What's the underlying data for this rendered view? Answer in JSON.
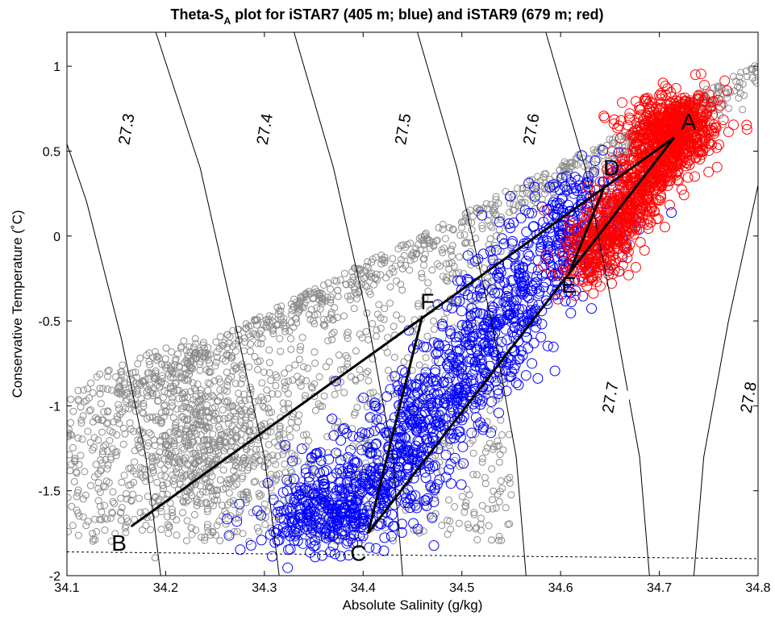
{
  "chart_data": {
    "type": "scatter",
    "title_main": "Theta-S",
    "title_sub": "A",
    "title_rest": " plot for iSTAR7 (405 m; blue) and iSTAR9 (679 m; red)",
    "xlabel": "Absolute Salinity (g/kg)",
    "ylabel": "Conservative Temperature (˚C)",
    "xlim": [
      34.1,
      34.8
    ],
    "ylim": [
      -2.0,
      1.2
    ],
    "xticks": [
      "34.1",
      "34.2",
      "34.3",
      "34.4",
      "34.5",
      "34.6",
      "34.7",
      "34.8"
    ],
    "yticks": [
      "-2",
      "-1.5",
      "-1",
      "-0.5",
      "0",
      "0.5",
      "1"
    ],
    "grid": false,
    "colors": {
      "background_cast": "#808080",
      "istar7": "#0000ff",
      "istar9": "#ff0000",
      "lines": "#000000"
    },
    "density_contours": [
      {
        "label": "27.3",
        "points": [
          [
            34.085,
            0.8
          ],
          [
            34.12,
            0.2
          ],
          [
            34.155,
            -0.6
          ],
          [
            34.18,
            -1.3
          ],
          [
            34.195,
            -2.0
          ]
        ]
      },
      {
        "label": "27.4",
        "points": [
          [
            34.19,
            1.2
          ],
          [
            34.235,
            0.4
          ],
          [
            34.27,
            -0.5
          ],
          [
            34.3,
            -1.3
          ],
          [
            34.315,
            -2.0
          ]
        ]
      },
      {
        "label": "27.5",
        "points": [
          [
            34.33,
            1.2
          ],
          [
            34.37,
            0.4
          ],
          [
            34.405,
            -0.5
          ],
          [
            34.43,
            -1.3
          ],
          [
            34.44,
            -2.0
          ]
        ]
      },
      {
        "label": "27.6",
        "points": [
          [
            34.455,
            1.2
          ],
          [
            34.495,
            0.4
          ],
          [
            34.53,
            -0.5
          ],
          [
            34.555,
            -1.3
          ],
          [
            34.565,
            -2.0
          ]
        ]
      },
      {
        "label": "27.7",
        "points": [
          [
            34.585,
            1.2
          ],
          [
            34.625,
            0.4
          ],
          [
            34.655,
            -0.5
          ],
          [
            34.68,
            -1.3
          ],
          [
            34.69,
            -2.0
          ]
        ]
      },
      {
        "label": "27.8",
        "points": [
          [
            34.8,
            0.3
          ],
          [
            34.77,
            -0.5
          ],
          [
            34.745,
            -1.3
          ],
          [
            34.735,
            -2.0
          ]
        ]
      }
    ],
    "contour_label_positions": [
      {
        "label": "27.3",
        "x": 34.16,
        "y": 0.63
      },
      {
        "label": "27.4",
        "x": 34.3,
        "y": 0.63
      },
      {
        "label": "27.5",
        "x": 34.44,
        "y": 0.63
      },
      {
        "label": "27.6",
        "x": 34.57,
        "y": 0.63
      },
      {
        "label": "27.7",
        "x": 34.65,
        "y": -0.95
      },
      {
        "label": "27.8",
        "x": 34.79,
        "y": -0.95
      }
    ],
    "freezing_line": [
      [
        34.1,
        -1.86
      ],
      [
        34.8,
        -1.9
      ]
    ],
    "mixing_points": [
      {
        "label": "A",
        "x": 34.715,
        "y": 0.58
      },
      {
        "label": "B",
        "x": 34.165,
        "y": -1.71
      },
      {
        "label": "C",
        "x": 34.405,
        "y": -1.75
      },
      {
        "label": "D",
        "x": 34.645,
        "y": 0.3
      },
      {
        "label": "E",
        "x": 34.61,
        "y": -0.2
      },
      {
        "label": "F",
        "x": 34.46,
        "y": -0.47
      }
    ],
    "mixing_lines": [
      [
        "A",
        "B"
      ],
      [
        "A",
        "C"
      ],
      [
        "C",
        "F"
      ],
      [
        "D",
        "E"
      ]
    ],
    "series": [
      {
        "color": "gray"
      },
      {
        "color": "blue"
      },
      {
        "color": "red"
      }
    ]
  }
}
